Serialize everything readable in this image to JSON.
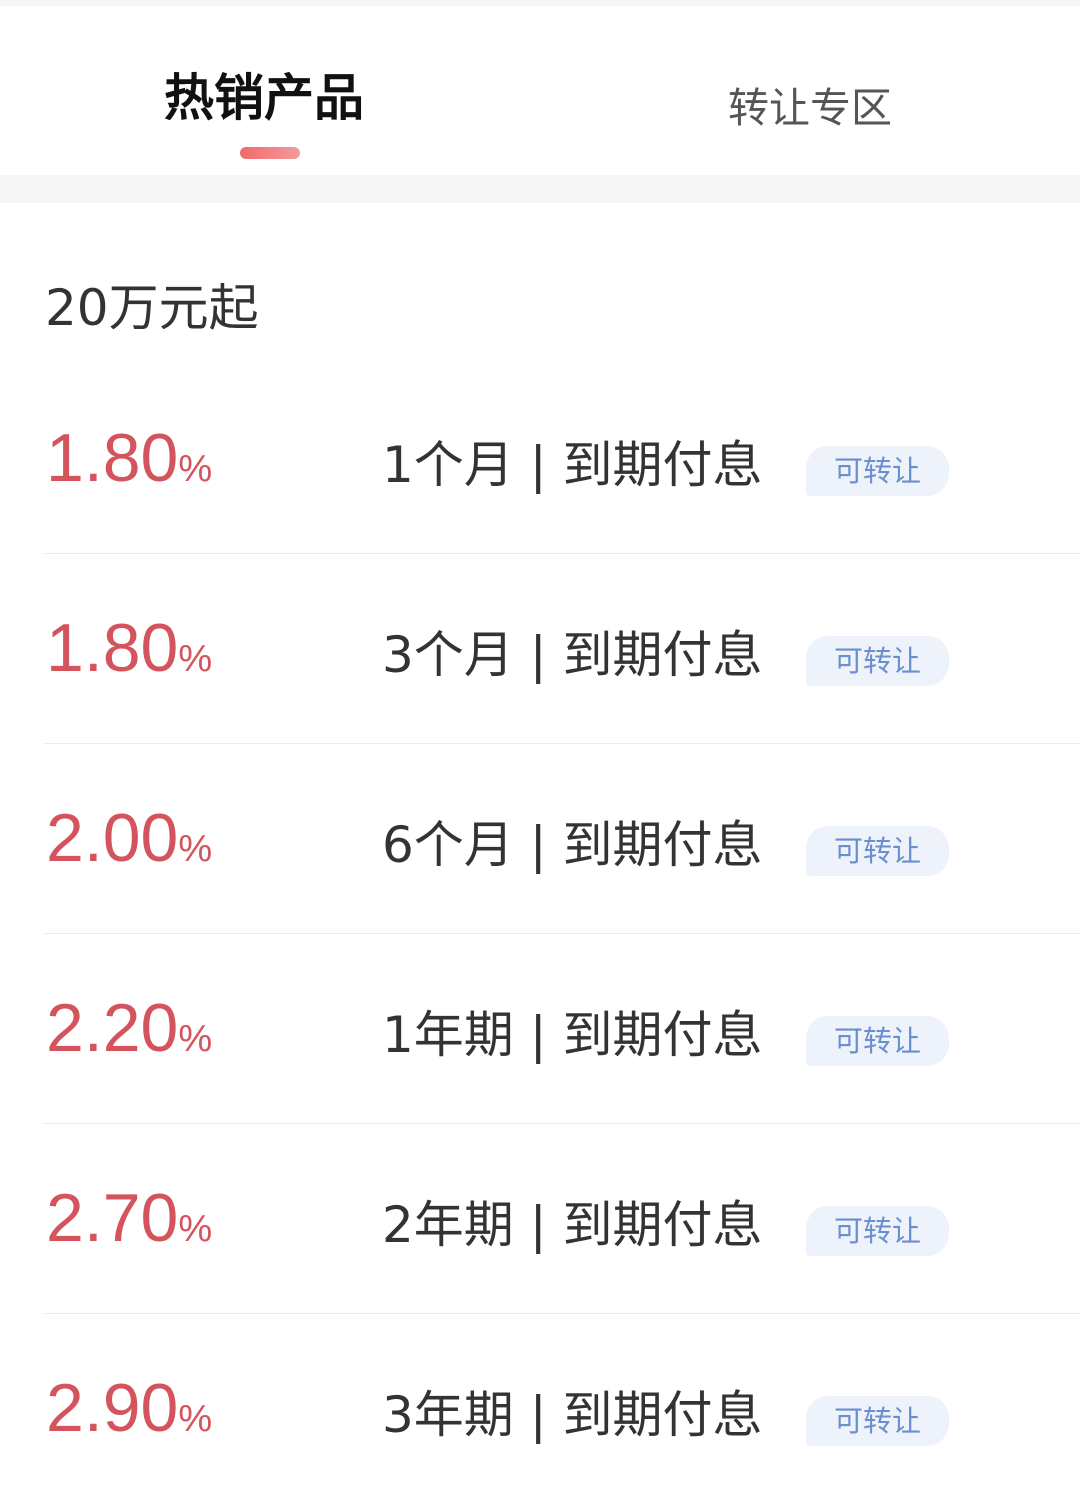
{
  "tabs": [
    {
      "label": "热销产品",
      "active": true
    },
    {
      "label": "转让专区",
      "active": false
    }
  ],
  "colors": {
    "rate": "#d4545d",
    "indicator": "#f06a6e",
    "badge_bg": "#eef2fa",
    "badge_text": "#6a8fd0"
  },
  "section": {
    "heading": "20万元起"
  },
  "products": [
    {
      "rate": "1.80",
      "unit": "%",
      "term": "1个月 | 到期付息",
      "badge": "可转让"
    },
    {
      "rate": "1.80",
      "unit": "%",
      "term": "3个月 | 到期付息",
      "badge": "可转让"
    },
    {
      "rate": "2.00",
      "unit": "%",
      "term": "6个月 | 到期付息",
      "badge": "可转让"
    },
    {
      "rate": "2.20",
      "unit": "%",
      "term": "1年期 | 到期付息",
      "badge": "可转让"
    },
    {
      "rate": "2.70",
      "unit": "%",
      "term": "2年期 | 到期付息",
      "badge": "可转让"
    },
    {
      "rate": "2.90",
      "unit": "%",
      "term": "3年期 | 到期付息",
      "badge": "可转让"
    }
  ]
}
